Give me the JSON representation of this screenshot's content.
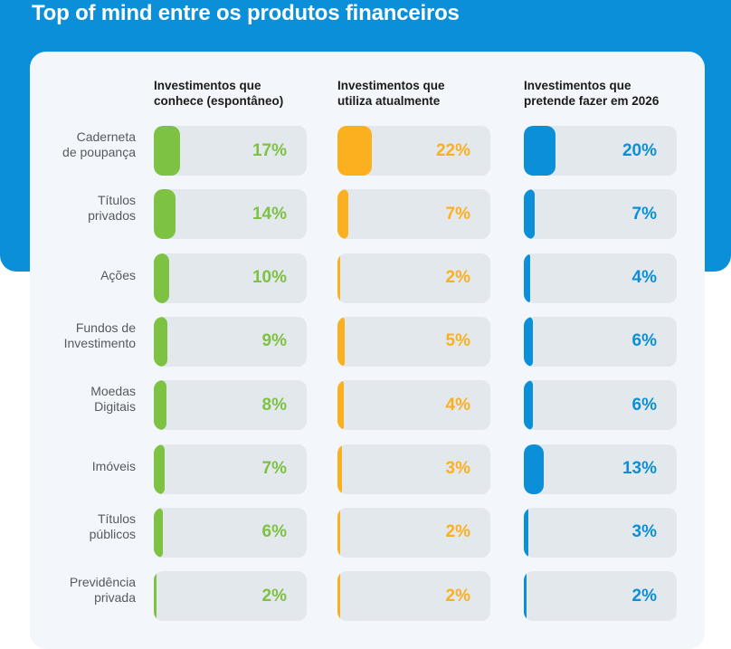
{
  "title": "Top of mind entre os produtos financeiros",
  "colors": {
    "band": "#0a8fd8",
    "green": "#7dc242",
    "orange": "#fbb020",
    "blue": "#0a8fd8"
  },
  "chart_data": {
    "type": "bar",
    "title": "Top of mind entre os produtos financeiros",
    "categories": [
      [
        "Caderneta",
        "de poupança"
      ],
      [
        "Títulos",
        "privados"
      ],
      [
        "Ações"
      ],
      [
        "Fundos de",
        "Investimento"
      ],
      [
        "Moedas",
        "Digitais"
      ],
      [
        "Imóveis"
      ],
      [
        "Títulos",
        "públicos"
      ],
      [
        "Previdência",
        "privada"
      ]
    ],
    "series": [
      {
        "name": [
          "Investimentos que",
          "conhece (espontâneo)"
        ],
        "color": "#7dc242",
        "values": [
          17,
          14,
          10,
          9,
          8,
          7,
          6,
          2
        ],
        "labels": [
          "17%",
          "14%",
          "10%",
          "9%",
          "8%",
          "7%",
          "6%",
          "2%"
        ]
      },
      {
        "name": [
          "Investimentos que",
          "utiliza atualmente"
        ],
        "color": "#fbb020",
        "values": [
          22,
          7,
          2,
          5,
          4,
          3,
          2,
          2
        ],
        "labels": [
          "22%",
          "7%",
          "2%",
          "5%",
          "4%",
          "3%",
          "2%",
          "2%"
        ]
      },
      {
        "name": [
          "Investimentos que",
          "pretende fazer em 2026"
        ],
        "color": "#0a8fd8",
        "values": [
          20,
          7,
          4,
          6,
          6,
          13,
          3,
          2
        ],
        "labels": [
          "20%",
          "7%",
          "4%",
          "6%",
          "6%",
          "13%",
          "3%",
          "2%"
        ]
      }
    ],
    "ylim": [
      0,
      100
    ]
  }
}
